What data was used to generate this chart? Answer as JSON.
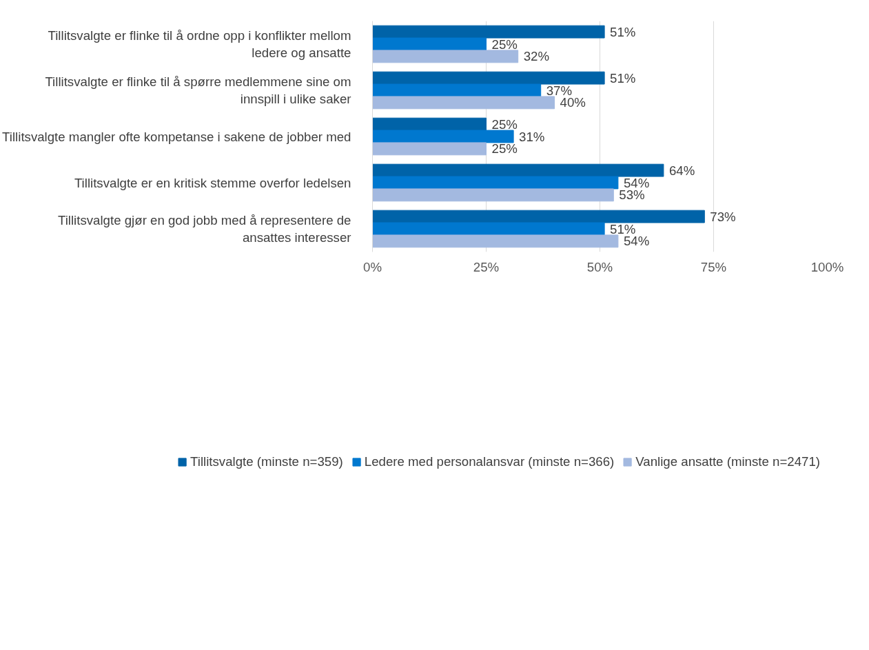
{
  "chart_data": {
    "type": "bar",
    "orientation": "horizontal",
    "categories": [
      "Tillitsvalgte er flinke til å ordne opp i konflikter mellom ledere og ansatte",
      "Tillitsvalgte er flinke til å spørre medlemmene sine om innspill i ulike saker",
      "Tillitsvalgte mangler ofte kompetanse i sakene de jobber med",
      "Tillitsvalgte er en kritisk stemme overfor ledelsen",
      "Tillitsvalgte gjør en god jobb med å representere de ansattes interesser"
    ],
    "series": [
      {
        "name": "Tillitsvalgte (minste n=359)",
        "color": "#0063a8",
        "values": [
          51,
          51,
          25,
          64,
          73
        ],
        "value_labels": [
          "51%",
          "51%",
          "25%",
          "64%",
          "73%"
        ]
      },
      {
        "name": "Ledere med personalansvar (minste n=366)",
        "color": "#0078cf",
        "values": [
          25,
          37,
          31,
          54,
          51
        ],
        "value_labels": [
          "25%",
          "37%",
          "31%",
          "54%",
          "51%"
        ]
      },
      {
        "name": "Vanlige ansatte (minste n=2471)",
        "color": "#a3b9e0",
        "values": [
          32,
          40,
          25,
          53,
          54
        ],
        "value_labels": [
          "32%",
          "40%",
          "25%",
          "53%",
          "54%"
        ]
      }
    ],
    "xlim": [
      0,
      100
    ],
    "xticks": [
      {
        "value": 0,
        "label": "0%"
      },
      {
        "value": 25,
        "label": "25%"
      },
      {
        "value": 50,
        "label": "50%"
      },
      {
        "value": 75,
        "label": "75%"
      },
      {
        "value": 100,
        "label": "100%"
      }
    ],
    "grid": "x",
    "legend": "bottom"
  }
}
